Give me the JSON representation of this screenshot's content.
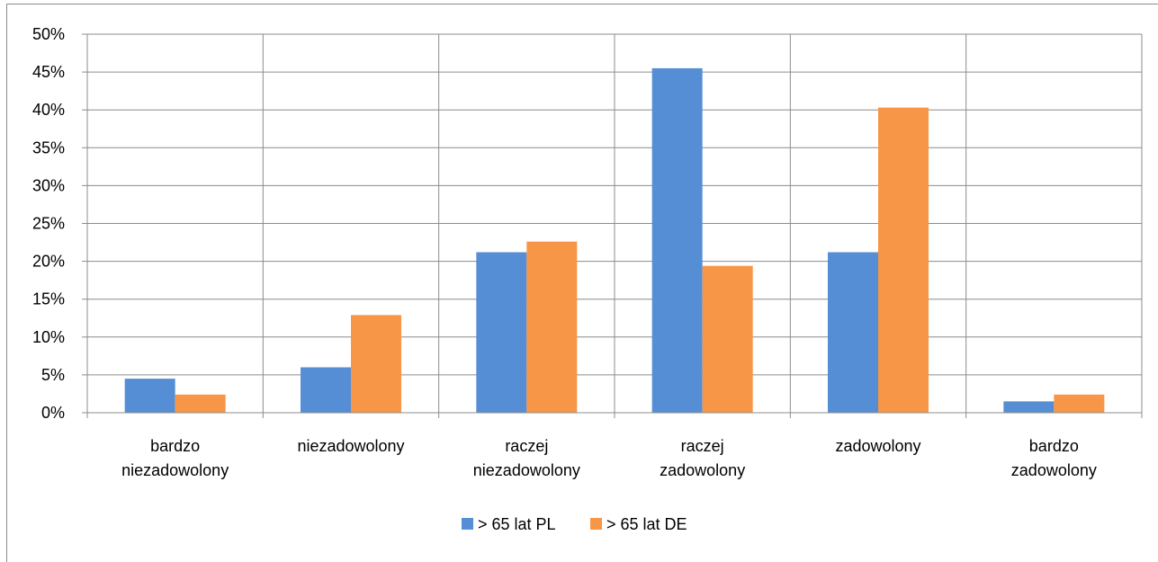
{
  "caption": "",
  "chart_data": {
    "type": "bar",
    "title": "",
    "xlabel": "",
    "ylabel": "",
    "categories": [
      [
        "bardzo",
        "niezadowolony"
      ],
      [
        "niezadowolony"
      ],
      [
        "raczej",
        "niezadowolony"
      ],
      [
        "raczej",
        "zadowolony"
      ],
      [
        "zadowolony"
      ],
      [
        "bardzo",
        "zadowolony"
      ]
    ],
    "series": [
      {
        "name": "> 65 lat PL",
        "color": "#558ED5",
        "values": [
          4.5,
          6.0,
          21.2,
          45.5,
          21.2,
          1.5
        ]
      },
      {
        "name": "> 65 lat DE",
        "color": "#F79646",
        "values": [
          2.4,
          12.9,
          22.6,
          19.4,
          40.3,
          2.4
        ]
      }
    ],
    "ylim": [
      0,
      50
    ],
    "yticks": [
      "0%",
      "5%",
      "10%",
      "15%",
      "20%",
      "25%",
      "30%",
      "35%",
      "40%",
      "45%",
      "50%"
    ],
    "grid": true,
    "legend_position": "bottom"
  }
}
